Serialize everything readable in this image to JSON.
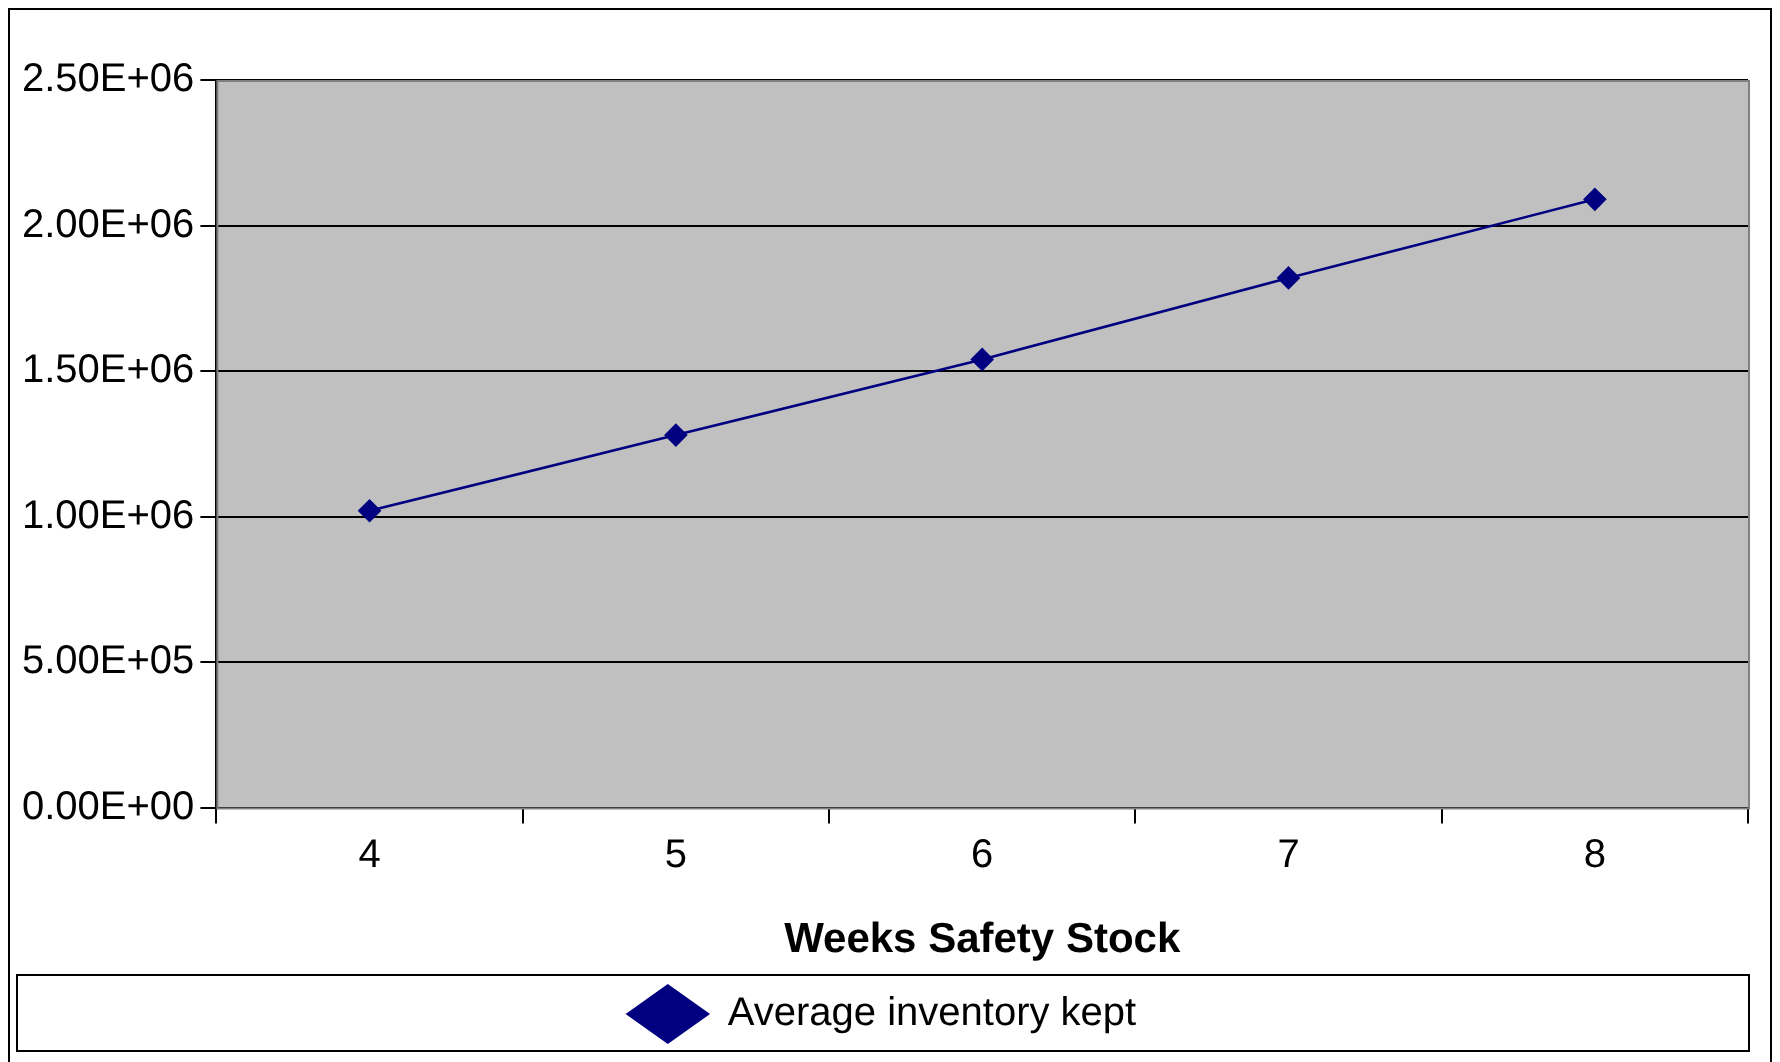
{
  "chart_data": {
    "type": "line",
    "xlabel": "Weeks Safety Stock",
    "categories": [
      "4",
      "5",
      "6",
      "7",
      "8"
    ],
    "series": [
      {
        "name": "Average inventory kept",
        "color": "#000080",
        "values": [
          1020000,
          1280000,
          1540000,
          1820000,
          2090000
        ]
      }
    ],
    "ylim": [
      0,
      2500000
    ],
    "yticks": [
      {
        "value": 0,
        "label": "0.00E+00"
      },
      {
        "value": 500000,
        "label": "5.00E+05"
      },
      {
        "value": 1000000,
        "label": "1.00E+06"
      },
      {
        "value": 1500000,
        "label": "1.50E+06"
      },
      {
        "value": 2000000,
        "label": "2.00E+06"
      },
      {
        "value": 2500000,
        "label": "2.50E+06"
      }
    ],
    "grid": "y",
    "legend": "bottom",
    "marker": "diamond",
    "line_style": "solid"
  }
}
